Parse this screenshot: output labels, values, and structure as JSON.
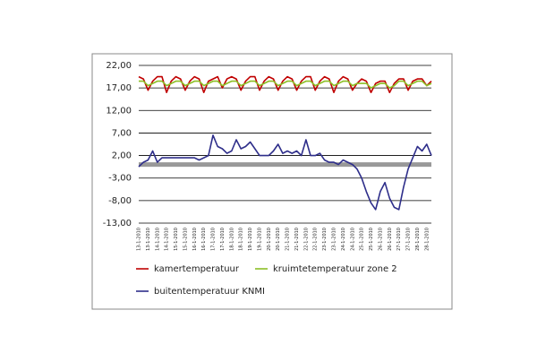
{
  "chart_data": {
    "type": "line",
    "categories": [
      "13-1-2010",
      null,
      "13-1-2010",
      null,
      "14-1-2010",
      null,
      "14-1-2010",
      null,
      "15-1-2010",
      null,
      "15-1-2010",
      null,
      "16-1-2010",
      null,
      "16-1-2010",
      null,
      "17-1-2010",
      null,
      "17-1-2010",
      null,
      "18-1-2010",
      null,
      "18-1-2010",
      null,
      "19-1-2010",
      null,
      "19-1-2010",
      null,
      "20-1-2010",
      null,
      "20-1-2010",
      null,
      "21-1-2010",
      null,
      "21-1-2010",
      null,
      "22-1-2010",
      null,
      "22-1-2010",
      null,
      "23-1-2010",
      null,
      "23-1-2010",
      null,
      "24-1-2010",
      null,
      "24-1-2010",
      null,
      "25-1-2010",
      null,
      "25-1-2010",
      null,
      "26-1-2010",
      null,
      "26-1-2010",
      null,
      "27-1-2010",
      null,
      "27-1-2010",
      null,
      "28-1-2010",
      null,
      "28-1-2010",
      null
    ],
    "series": [
      {
        "name": "kamertemperatuur",
        "color": "#c00000",
        "values": [
          19.5,
          19,
          16.5,
          18.5,
          19.5,
          19.5,
          16,
          18.5,
          19.5,
          19,
          16.5,
          18.5,
          19.5,
          19,
          16,
          18.5,
          19,
          19.5,
          17,
          19,
          19.5,
          19,
          16.5,
          18.5,
          19.5,
          19.5,
          16.5,
          18.5,
          19.5,
          19,
          16.5,
          18.5,
          19.5,
          19,
          16.5,
          18.5,
          19.5,
          19.5,
          16.5,
          18.5,
          19.5,
          19,
          16,
          18.5,
          19.5,
          19,
          16.5,
          18,
          19,
          18.5,
          16,
          18,
          18.5,
          18.5,
          16,
          18,
          19,
          19,
          16.5,
          18.5,
          19,
          19,
          17.5,
          18.5
        ]
      },
      {
        "name": "kruimtetemperatuur zone 2",
        "color": "#8cbf26",
        "values": [
          18.5,
          18.5,
          17.5,
          18,
          18.5,
          18.5,
          17.5,
          18,
          18.5,
          18.5,
          17.5,
          18,
          18.5,
          18.5,
          17.5,
          18,
          18.5,
          18.5,
          17.5,
          18,
          18.5,
          18.5,
          17.5,
          18,
          18.5,
          18.5,
          17.5,
          18,
          18.5,
          18.5,
          17.5,
          18,
          18.5,
          18.5,
          17.5,
          18,
          18.5,
          18.5,
          17.5,
          18,
          18.5,
          18.5,
          17.5,
          18,
          18.5,
          18.5,
          17.5,
          18,
          18,
          18,
          17,
          17.5,
          18,
          18,
          17,
          17.5,
          18.5,
          18.5,
          17.5,
          18,
          18.5,
          18.5,
          17.5,
          18
        ]
      },
      {
        "name": "buitentemperatuur KNMI",
        "color": "#2e2e8a",
        "values": [
          -0.5,
          0.5,
          1,
          3,
          0.5,
          1.5,
          1.5,
          1.5,
          1.5,
          1.5,
          1.5,
          1.5,
          1.5,
          1,
          1.5,
          2,
          6.5,
          4,
          3.5,
          2.5,
          3,
          5.5,
          3.5,
          4,
          5,
          3.5,
          2,
          2,
          2,
          3,
          4.5,
          2.5,
          3,
          2.5,
          3,
          2,
          5.5,
          2,
          2,
          2.5,
          1,
          0.5,
          0.5,
          0,
          1,
          0.5,
          0,
          -1,
          -3,
          -6,
          -8.5,
          -10,
          -6,
          -4,
          -7.5,
          -9.5,
          -10,
          -5,
          -1,
          1.5,
          4,
          3,
          4.5,
          2
        ]
      }
    ],
    "ylim": [
      -13,
      22
    ],
    "yticks": [
      {
        "value": 22,
        "label": "22,00"
      },
      {
        "value": 17,
        "label": "17,00"
      },
      {
        "value": 12,
        "label": "12,00"
      },
      {
        "value": 7,
        "label": "7,00"
      },
      {
        "value": 2,
        "label": "2,00"
      },
      {
        "value": -3,
        "label": "-3,00"
      },
      {
        "value": -8,
        "label": "-8,00"
      },
      {
        "value": -13,
        "label": "-13,00"
      }
    ],
    "reference_line": 0,
    "grid": true
  }
}
